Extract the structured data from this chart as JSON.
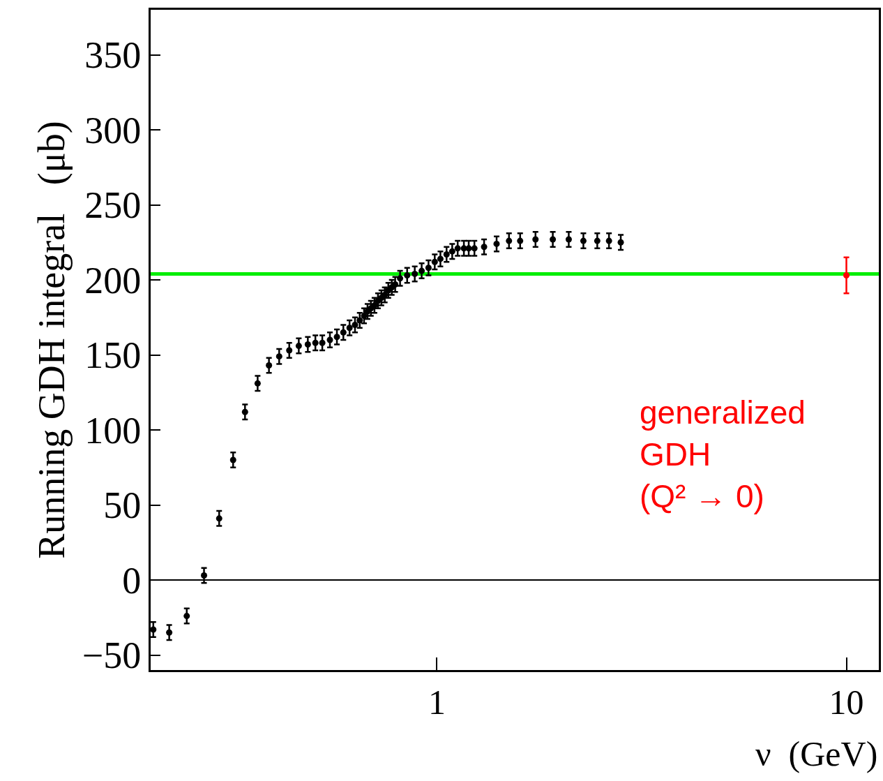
{
  "chart_data": {
    "type": "scatter",
    "xlabel": "ν  (GeV)",
    "ylabel": "Running GDH integral   (μb)",
    "log": "x",
    "xlim": [
      0.2,
      12
    ],
    "ylim": [
      -60,
      380
    ],
    "xticks": [
      1,
      10
    ],
    "yticks": [
      {
        "value": -50,
        "label": "−50"
      },
      0,
      50,
      100,
      150,
      200,
      250,
      300,
      350
    ],
    "grid": false,
    "marker": "circle",
    "series": [
      {
        "color": "#000000",
        "x": [
          0.203,
          0.222,
          0.245,
          0.27,
          0.294,
          0.318,
          0.34,
          0.365,
          0.389,
          0.412,
          0.436,
          0.46,
          0.484,
          0.505,
          0.525,
          0.548,
          0.57,
          0.591,
          0.612,
          0.631,
          0.648,
          0.664,
          0.677,
          0.69,
          0.704,
          0.718,
          0.732,
          0.746,
          0.761,
          0.776,
          0.791,
          0.813,
          0.846,
          0.883,
          0.918,
          0.954,
          0.988,
          1.02,
          1.056,
          1.09,
          1.124,
          1.164,
          1.196,
          1.235,
          1.304,
          1.399,
          1.5,
          1.597,
          1.741,
          1.919,
          2.099,
          2.279,
          2.464,
          2.632,
          2.812
        ],
        "values": [
          -33,
          -35,
          -24,
          3,
          41,
          80,
          112,
          131,
          143,
          149,
          153,
          156,
          157,
          158,
          158,
          160,
          162,
          165,
          168,
          170,
          173,
          176,
          179,
          181,
          183,
          186,
          188,
          190,
          193,
          195,
          197,
          201,
          203,
          204,
          206,
          208,
          212,
          214,
          217,
          219,
          221,
          221,
          221,
          221,
          222,
          224,
          226,
          226,
          227,
          227,
          227,
          226,
          226,
          226,
          225
        ],
        "errors": [
          5,
          5,
          5,
          5,
          5,
          5,
          5,
          5,
          5,
          5,
          5,
          5,
          5,
          5,
          5,
          5,
          5,
          5,
          5,
          5,
          5,
          5,
          5,
          5,
          5,
          5,
          5,
          5,
          5,
          5,
          5,
          5,
          5,
          5,
          5,
          5,
          5,
          5,
          5,
          5,
          5,
          5,
          5,
          5,
          5,
          5,
          5,
          5,
          5,
          5,
          5,
          5,
          5,
          5,
          5
        ]
      },
      {
        "color": "#ff0000",
        "x": [
          10
        ],
        "values": [
          203
        ],
        "errors": [
          12
        ]
      }
    ],
    "ref_lines": [
      {
        "axis": "y",
        "value": 204,
        "color": "#00ee00"
      },
      {
        "axis": "y",
        "value": 0,
        "color": "#000000"
      }
    ],
    "annotations": [
      "generalized\nGDH\n(Q² → 0)"
    ]
  }
}
